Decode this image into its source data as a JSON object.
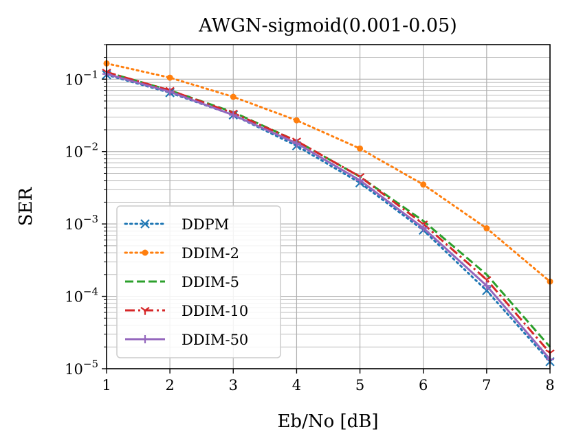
{
  "chart_data": {
    "type": "line",
    "title": "AWGN-sigmoid(0.001-0.05)",
    "xlabel": "Eb/No [dB]",
    "ylabel": "SER",
    "xlim": [
      1,
      8
    ],
    "ylim": [
      1e-05,
      0.3
    ],
    "yscale": "log",
    "grid": "major and minor",
    "legend_position": "lower-left",
    "x_ticks": [
      1,
      2,
      3,
      4,
      5,
      6,
      7,
      8
    ],
    "y_ticks": [
      {
        "value": 1e-05,
        "base": "10",
        "exp": "−5"
      },
      {
        "value": 0.0001,
        "base": "10",
        "exp": "−4"
      },
      {
        "value": 0.001,
        "base": "10",
        "exp": "−3"
      },
      {
        "value": 0.01,
        "base": "10",
        "exp": "−2"
      },
      {
        "value": 0.1,
        "base": "10",
        "exp": "−1"
      }
    ],
    "x": [
      1,
      2,
      3,
      4,
      5,
      6,
      7,
      8
    ],
    "series": [
      {
        "name": "DDPM",
        "color": "#1f77b4",
        "linestyle": "dotted",
        "marker": "x",
        "values": [
          0.115,
          0.065,
          0.032,
          0.012,
          0.0037,
          0.00082,
          0.00012,
          1.25e-05
        ]
      },
      {
        "name": "DDIM-2",
        "color": "#ff7f0e",
        "linestyle": "dotted",
        "marker": "dot",
        "values": [
          0.165,
          0.105,
          0.057,
          0.027,
          0.011,
          0.0035,
          0.00087,
          0.00016
        ]
      },
      {
        "name": "DDIM-5",
        "color": "#2ca02c",
        "linestyle": "dashed",
        "marker": "none",
        "values": [
          0.125,
          0.07,
          0.035,
          0.014,
          0.0045,
          0.0011,
          0.0002,
          2e-05
        ]
      },
      {
        "name": "DDIM-10",
        "color": "#d62728",
        "linestyle": "dashdot",
        "marker": "tri_down",
        "values": [
          0.125,
          0.07,
          0.034,
          0.014,
          0.0045,
          0.001,
          0.00017,
          1.65e-05
        ]
      },
      {
        "name": "DDIM-50",
        "color": "#9467bd",
        "linestyle": "solid",
        "marker": "plus",
        "values": [
          0.118,
          0.067,
          0.032,
          0.013,
          0.004,
          0.00088,
          0.00014,
          1.35e-05
        ]
      }
    ]
  }
}
